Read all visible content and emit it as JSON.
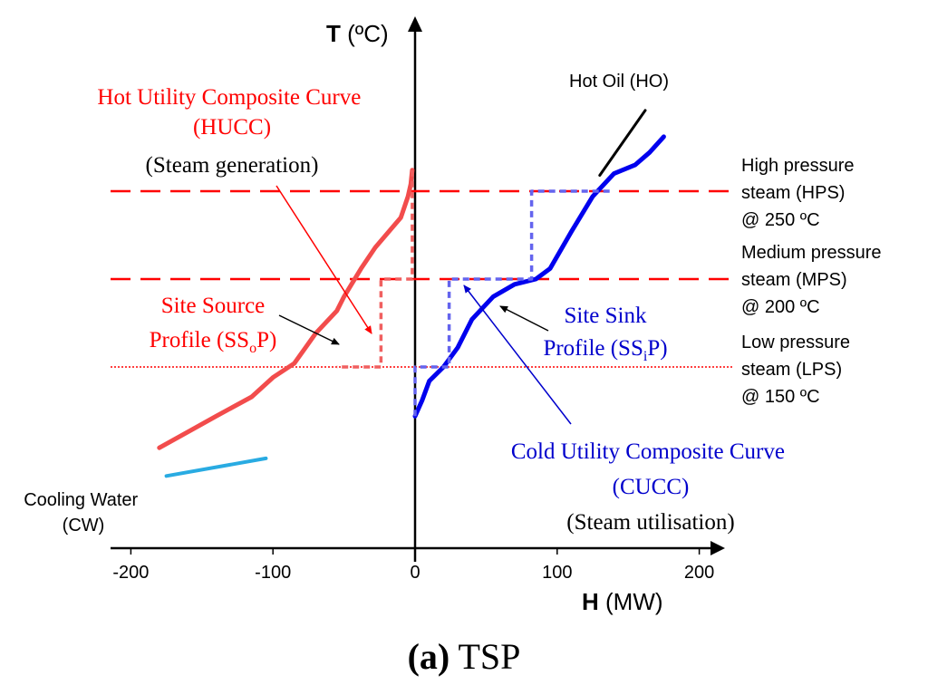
{
  "chart_data": {
    "type": "line",
    "caption": {
      "bold": "(a)",
      "rest": " TSP"
    },
    "xlabel": {
      "symbol": "H",
      "unit": " (MW)"
    },
    "ylabel": {
      "symbol": "T",
      "unit": " (ºC)"
    },
    "xlim": [
      -235,
      235
    ],
    "x_ticks": [
      {
        "value": -200,
        "label": "-200"
      },
      {
        "value": -100,
        "label": "-100"
      },
      {
        "value": 0,
        "label": "0"
      },
      {
        "value": 100,
        "label": "100"
      },
      {
        "value": 200,
        "label": "200"
      }
    ],
    "steam_levels": [
      {
        "key": "hps",
        "lines": [
          "High pressure",
          "steam (HPS)",
          "@ 250 ºC"
        ],
        "temperature_c": 250,
        "style": "dashed",
        "color": "#ff0000"
      },
      {
        "key": "mps",
        "lines": [
          "Medium pressure",
          "steam (MPS)",
          "@ 200 ºC"
        ],
        "temperature_c": 200,
        "style": "dashed",
        "color": "#ff0000"
      },
      {
        "key": "lps",
        "lines": [
          "Low pressure",
          "steam (LPS)",
          "@ 150 ºC"
        ],
        "temperature_c": 150,
        "style": "dotted",
        "color": "#ff0000"
      }
    ],
    "series": [
      {
        "key": "site_source",
        "color": "#f24c4c",
        "style": "solid",
        "points": [
          [
            -180,
            104
          ],
          [
            -160,
            113
          ],
          [
            -140,
            122
          ],
          [
            -115,
            133
          ],
          [
            -100,
            144
          ],
          [
            -85,
            152
          ],
          [
            -70,
            169
          ],
          [
            -55,
            182
          ],
          [
            -50,
            190
          ],
          [
            -38,
            206
          ],
          [
            -28,
            218
          ],
          [
            -10,
            235
          ],
          [
            -5,
            247
          ],
          [
            -3,
            254
          ],
          [
            -2,
            262
          ]
        ]
      },
      {
        "key": "site_sink",
        "color": "#0000ee",
        "style": "solid",
        "points": [
          [
            0,
            122
          ],
          [
            5,
            131
          ],
          [
            10,
            142
          ],
          [
            20,
            150
          ],
          [
            30,
            161
          ],
          [
            40,
            177
          ],
          [
            55,
            190
          ],
          [
            70,
            197
          ],
          [
            85,
            200
          ],
          [
            95,
            206
          ],
          [
            110,
            227
          ],
          [
            125,
            247
          ],
          [
            140,
            260
          ],
          [
            155,
            265
          ],
          [
            165,
            272
          ],
          [
            175,
            281
          ]
        ]
      },
      {
        "key": "hucc",
        "color": "#f06060",
        "style": "dashed",
        "points": [
          [
            -2,
            262
          ],
          [
            -2,
            200
          ],
          [
            -24,
            200
          ],
          [
            -24,
            150
          ],
          [
            -55,
            150
          ]
        ]
      },
      {
        "key": "cucc",
        "color": "#6464ee",
        "style": "dashed",
        "points": [
          [
            0,
            122
          ],
          [
            0,
            150
          ],
          [
            24,
            150
          ],
          [
            24,
            200
          ],
          [
            82,
            200
          ],
          [
            82,
            250
          ],
          [
            140,
            250
          ]
        ]
      },
      {
        "key": "hot_oil",
        "color": "#000000",
        "style": "solid",
        "points": [
          [
            130,
            259
          ],
          [
            162,
            296
          ]
        ]
      },
      {
        "key": "cooling_water",
        "color": "#29abe2",
        "style": "solid",
        "points": [
          [
            -175,
            88
          ],
          [
            -105,
            98
          ]
        ]
      }
    ],
    "annotations": {
      "hucc": {
        "lines": [
          "Hot Utility Composite Curve",
          "(HUCC)"
        ],
        "color": "#ff0000"
      },
      "steam_generation": {
        "text": "(Steam generation)",
        "color": "#000000"
      },
      "site_source": {
        "line1": "Site Source",
        "line2_pre": "Profile (SS",
        "line2_sub": "o",
        "line2_post": "P)",
        "color": "#ff0000"
      },
      "site_sink": {
        "line1": "Site Sink",
        "line2_pre": "Profile (SS",
        "line2_sub": "i",
        "line2_post": "P)",
        "color": "#0000cc"
      },
      "cucc": {
        "lines": [
          "Cold Utility Composite Curve",
          "(CUCC)"
        ],
        "color": "#0000cc"
      },
      "steam_utilisation": {
        "text": "(Steam utilisation)",
        "color": "#000000"
      },
      "hot_oil": {
        "text": "Hot Oil (HO)",
        "color": "#000000"
      },
      "cooling_water": {
        "lines": [
          "Cooling Water",
          "(CW)"
        ],
        "color": "#000000"
      }
    }
  }
}
